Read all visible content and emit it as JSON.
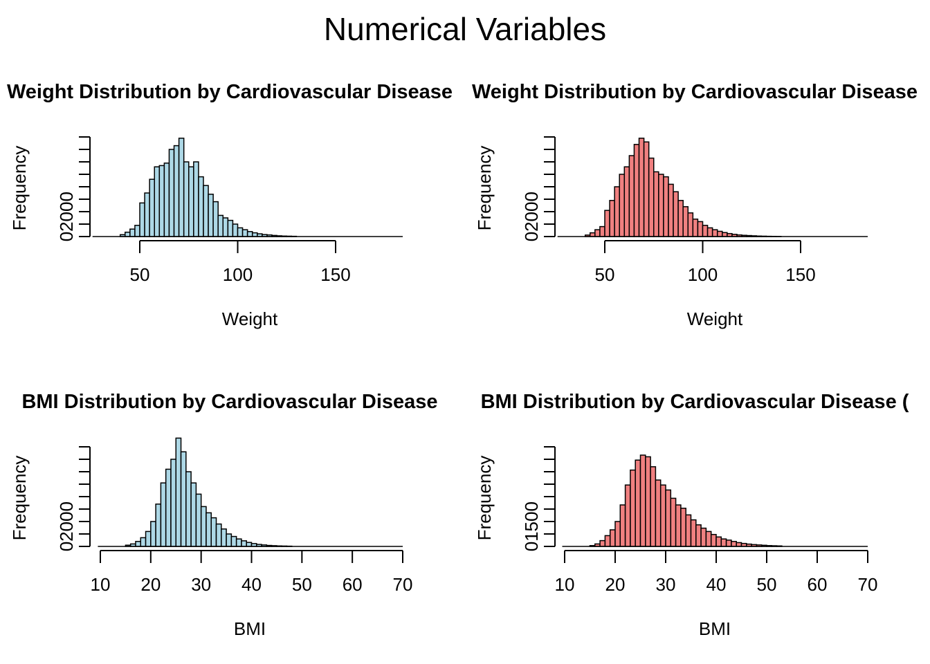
{
  "figure": {
    "title": "Numerical Variables"
  },
  "colors": {
    "no_disease": "#add8e6",
    "disease": "#f08080",
    "outline": "#000000"
  },
  "chart_data": [
    {
      "type": "bar",
      "title": "Weight Distribution by Cardiovascular Disease",
      "xlabel": "Weight",
      "ylabel": "Frequency",
      "fill": "#add8e6",
      "bin_width": 2.5,
      "bin_starts": [
        40,
        42.5,
        45,
        47.5,
        50,
        52.5,
        55,
        57.5,
        60,
        62.5,
        65,
        67.5,
        70,
        72.5,
        75,
        77.5,
        80,
        82.5,
        85,
        87.5,
        90,
        92.5,
        95,
        97.5,
        100,
        102.5,
        105,
        107.5,
        110,
        112.5,
        115,
        117.5,
        120,
        122.5,
        125,
        127.5
      ],
      "values": [
        150,
        350,
        600,
        900,
        2700,
        3500,
        4600,
        5600,
        5700,
        5900,
        7000,
        7300,
        7900,
        6000,
        5600,
        6000,
        4800,
        4100,
        3400,
        2800,
        1700,
        1500,
        1300,
        1000,
        700,
        550,
        400,
        300,
        220,
        160,
        130,
        90,
        60,
        40,
        30,
        20
      ],
      "xticks": [
        50,
        100,
        150
      ],
      "yticks": [
        0,
        2000
      ],
      "ylim": [
        0,
        8000
      ]
    },
    {
      "type": "bar",
      "title": "Weight Distribution by Cardiovascular Disease",
      "xlabel": "Weight",
      "ylabel": "Frequency",
      "fill": "#f08080",
      "bin_width": 2.5,
      "bin_starts": [
        40,
        42.5,
        45,
        47.5,
        50,
        52.5,
        55,
        57.5,
        60,
        62.5,
        65,
        67.5,
        70,
        72.5,
        75,
        77.5,
        80,
        82.5,
        85,
        87.5,
        90,
        92.5,
        95,
        97.5,
        100,
        102.5,
        105,
        107.5,
        110,
        112.5,
        115,
        117.5,
        120,
        122.5,
        125,
        127.5,
        130,
        132.5,
        135,
        137.5
      ],
      "values": [
        120,
        300,
        550,
        800,
        2100,
        2900,
        4000,
        5000,
        5600,
        6500,
        7400,
        7900,
        7600,
        6300,
        5200,
        5000,
        4800,
        4200,
        3600,
        2900,
        2400,
        1900,
        1400,
        1200,
        900,
        700,
        550,
        420,
        320,
        240,
        180,
        130,
        100,
        80,
        60,
        40,
        30,
        20,
        15,
        10
      ],
      "xticks": [
        50,
        100,
        150
      ],
      "yticks": [
        0,
        2000
      ],
      "ylim": [
        0,
        8000
      ]
    },
    {
      "type": "bar",
      "title": "BMI Distribution by Cardiovascular Disease",
      "xlabel": "BMI",
      "ylabel": "Frequency",
      "fill": "#add8e6",
      "bin_width": 1,
      "bin_starts": [
        15,
        16,
        17,
        18,
        19,
        20,
        21,
        22,
        23,
        24,
        25,
        26,
        27,
        28,
        29,
        30,
        31,
        32,
        33,
        34,
        35,
        36,
        37,
        38,
        39,
        40,
        41,
        42,
        43,
        44,
        45,
        46,
        47
      ],
      "values": [
        100,
        200,
        400,
        700,
        1200,
        2000,
        3400,
        5100,
        6200,
        7000,
        8700,
        7600,
        6000,
        5100,
        4200,
        3200,
        2700,
        2300,
        1800,
        1400,
        1000,
        800,
        600,
        450,
        320,
        230,
        160,
        120,
        80,
        60,
        40,
        30,
        20
      ],
      "xticks": [
        10,
        20,
        30,
        40,
        50,
        60,
        70
      ],
      "yticks": [
        0,
        2000
      ],
      "ylim": [
        0,
        8000
      ]
    },
    {
      "type": "bar",
      "title": "BMI Distribution by Cardiovascular Disease (",
      "xlabel": "BMI",
      "ylabel": "Frequency",
      "fill": "#f08080",
      "bin_width": 1,
      "bin_starts": [
        15,
        16,
        17,
        18,
        19,
        20,
        21,
        22,
        23,
        24,
        25,
        26,
        27,
        28,
        29,
        30,
        31,
        32,
        33,
        34,
        35,
        36,
        37,
        38,
        39,
        40,
        41,
        42,
        43,
        44,
        45,
        46,
        47,
        48,
        49,
        50,
        51,
        52
      ],
      "values": [
        50,
        150,
        350,
        650,
        1000,
        1500,
        2500,
        3700,
        4600,
        5200,
        5500,
        5400,
        4800,
        4000,
        3700,
        3400,
        2900,
        2500,
        2300,
        1900,
        1600,
        1300,
        1100,
        900,
        720,
        570,
        450,
        380,
        300,
        230,
        180,
        140,
        110,
        90,
        70,
        50,
        40,
        30
      ],
      "xticks": [
        10,
        20,
        30,
        40,
        50,
        60,
        70
      ],
      "yticks": [
        0,
        1500
      ],
      "ylim": [
        0,
        6000
      ]
    }
  ]
}
